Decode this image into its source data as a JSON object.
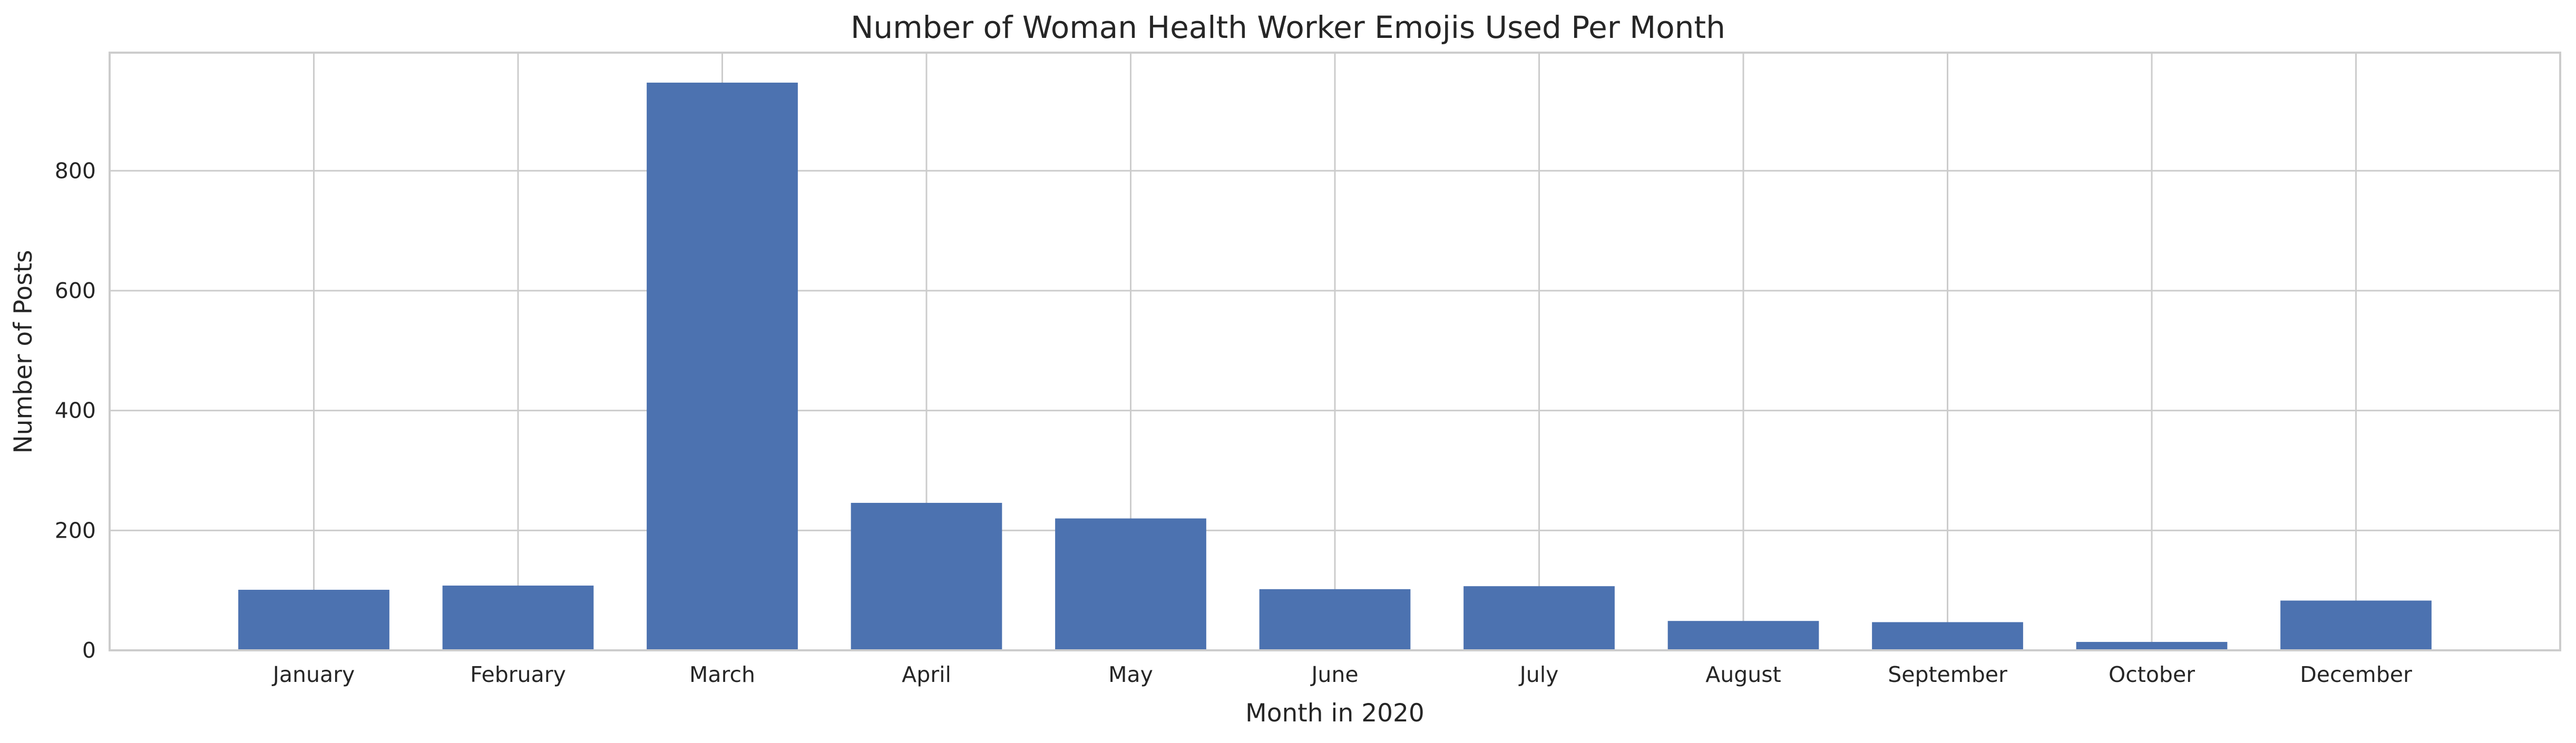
{
  "chart_data": {
    "type": "bar",
    "title": "Number of Woman Health Worker Emojis Used Per Month",
    "xlabel": "Month in 2020",
    "ylabel": "Number of Posts",
    "categories": [
      "January",
      "February",
      "March",
      "April",
      "May",
      "June",
      "July",
      "August",
      "September",
      "October",
      "December"
    ],
    "values": [
      101,
      108,
      947,
      246,
      220,
      102,
      107,
      49,
      47,
      14,
      83
    ],
    "ylim": [
      0,
      997
    ],
    "yticks": [
      0,
      200,
      400,
      600,
      800
    ],
    "grid": true,
    "legend": "none",
    "bar_color": "#4c72b0",
    "grid_color": "#cccccc",
    "text_color": "#262626"
  }
}
